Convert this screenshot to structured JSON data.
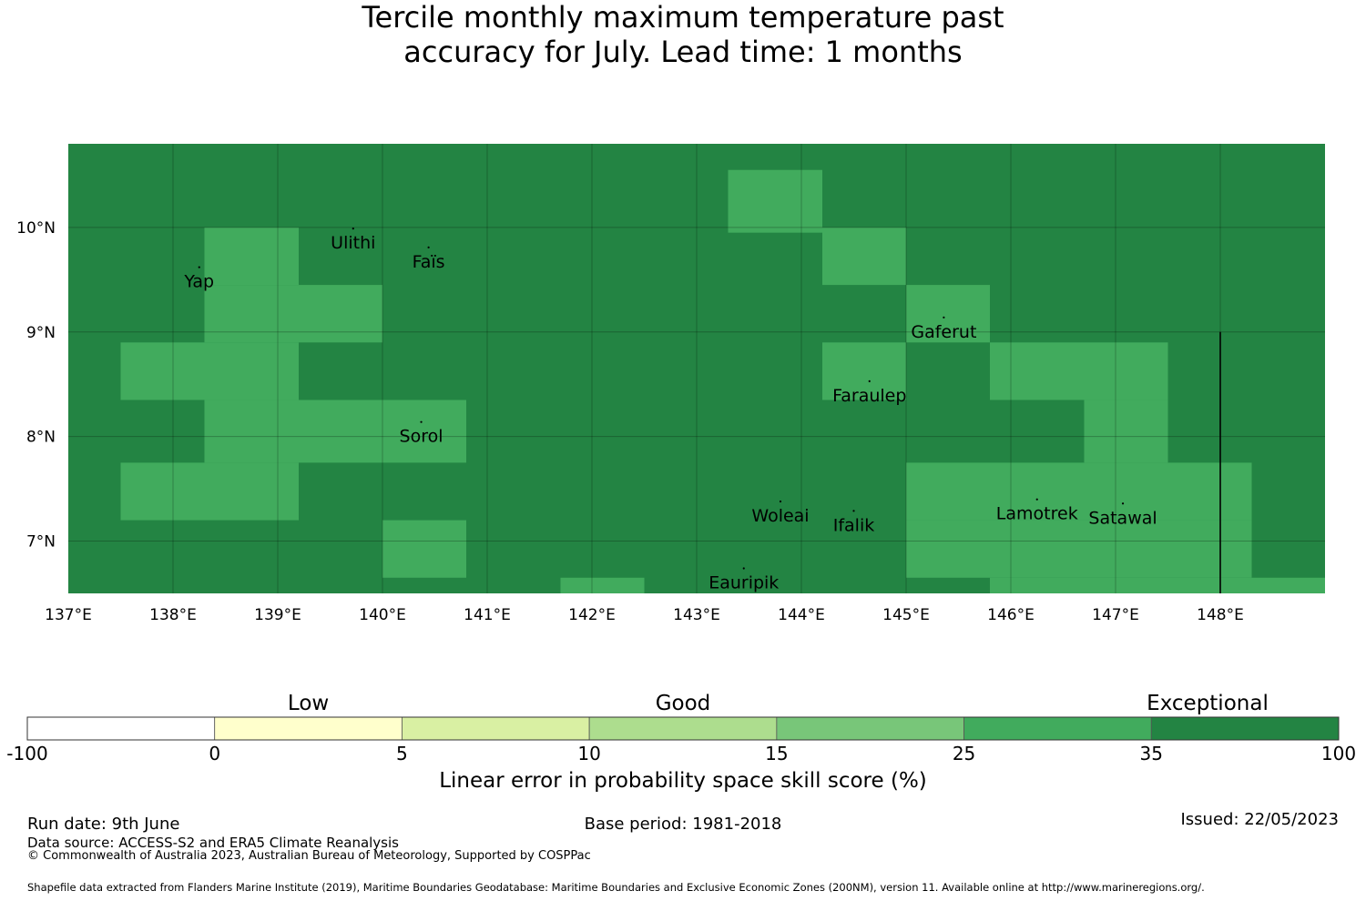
{
  "title": {
    "line1": "Tercile monthly maximum temperature past",
    "line2": "accuracy for July. Lead time: 1 months"
  },
  "map": {
    "lon_range": [
      137,
      149
    ],
    "lat_range": [
      6.5,
      10.8
    ],
    "lon_ticks": [
      "137°E",
      "138°E",
      "139°E",
      "140°E",
      "141°E",
      "142°E",
      "143°E",
      "144°E",
      "145°E",
      "146°E",
      "147°E",
      "148°E"
    ],
    "lat_ticks": [
      "10°N",
      "9°N",
      "8°N",
      "7°N"
    ],
    "grid": true,
    "colors": {
      "exceptional": "#238443",
      "high": "#41ab5d"
    },
    "high_skill_cells": [
      {
        "lon": [
          143.3,
          144.2
        ],
        "lat": [
          9.95,
          10.55
        ]
      },
      {
        "lon": [
          138.3,
          139.2
        ],
        "lat": [
          9.45,
          10.0
        ]
      },
      {
        "lon": [
          144.2,
          145.0
        ],
        "lat": [
          9.45,
          10.0
        ]
      },
      {
        "lon": [
          138.3,
          140.0
        ],
        "lat": [
          8.9,
          9.45
        ]
      },
      {
        "lon": [
          145.0,
          145.8
        ],
        "lat": [
          8.9,
          9.45
        ]
      },
      {
        "lon": [
          137.5,
          139.2
        ],
        "lat": [
          8.35,
          8.9
        ]
      },
      {
        "lon": [
          144.2,
          145.0
        ],
        "lat": [
          8.35,
          8.9
        ]
      },
      {
        "lon": [
          145.8,
          147.5
        ],
        "lat": [
          8.35,
          8.9
        ]
      },
      {
        "lon": [
          138.3,
          140.8
        ],
        "lat": [
          7.75,
          8.35
        ]
      },
      {
        "lon": [
          146.7,
          147.5
        ],
        "lat": [
          7.75,
          8.35
        ]
      },
      {
        "lon": [
          137.5,
          139.2
        ],
        "lat": [
          7.2,
          7.75
        ]
      },
      {
        "lon": [
          145.0,
          148.3
        ],
        "lat": [
          7.2,
          7.75
        ]
      },
      {
        "lon": [
          140.0,
          140.8
        ],
        "lat": [
          6.65,
          7.2
        ]
      },
      {
        "lon": [
          145.0,
          148.3
        ],
        "lat": [
          6.65,
          7.2
        ]
      },
      {
        "lon": [
          141.7,
          142.5
        ],
        "lat": [
          6.5,
          6.65
        ]
      },
      {
        "lon": [
          145.8,
          149.0
        ],
        "lat": [
          6.5,
          6.65
        ]
      }
    ],
    "places": [
      {
        "name": "Yap",
        "lon": 138.25,
        "lat": 9.48
      },
      {
        "name": "Ulithi",
        "lon": 139.72,
        "lat": 9.85
      },
      {
        "name": "Faïs",
        "lon": 140.44,
        "lat": 9.67
      },
      {
        "name": "Gaferut",
        "lon": 145.36,
        "lat": 9.0
      },
      {
        "name": "Faraulep",
        "lon": 144.65,
        "lat": 8.39
      },
      {
        "name": "Sorol",
        "lon": 140.37,
        "lat": 8.0
      },
      {
        "name": "Woleai",
        "lon": 143.8,
        "lat": 7.24
      },
      {
        "name": "Ifalik",
        "lon": 144.5,
        "lat": 7.15
      },
      {
        "name": "Lamotrek",
        "lon": 146.25,
        "lat": 7.26
      },
      {
        "name": "Satawal",
        "lon": 147.07,
        "lat": 7.22
      },
      {
        "name": "Eauripik",
        "lon": 143.45,
        "lat": 6.6
      }
    ],
    "boundary_lon": 148.0,
    "boundary_lat": [
      6.5,
      9.0
    ]
  },
  "colorbar": {
    "ticks": [
      "-100",
      "0",
      "5",
      "10",
      "15",
      "25",
      "35",
      "100"
    ],
    "colors": [
      "#ffffff",
      "#ffffcc",
      "#d9f0a3",
      "#addd8e",
      "#78c679",
      "#41ab5d",
      "#238443"
    ],
    "categories": [
      {
        "label": "Low",
        "pos": 1.5
      },
      {
        "label": "Good",
        "pos": 3.5
      },
      {
        "label": "Exceptional",
        "pos": 6.3
      }
    ],
    "title": "Linear error in probability space skill score (%)"
  },
  "footer": {
    "run_date": "Run date: 9th June",
    "base_period": "Base period: 1981-2018",
    "issued": "Issued: 22/05/2023",
    "data_source": "Data source: ACCESS-S2 and ERA5 Climate Reanalysis",
    "copyright": "© Commonwealth of Australia 2023, Australian Bureau of Meteorology, Supported by COSPPac",
    "shapefile": "Shapefile data extracted from Flanders Marine Institute (2019), Maritime Boundaries Geodatabase: Maritime Boundaries and Exclusive Economic Zones (200NM), version 11. Available online at http://www.marineregions.org/."
  }
}
